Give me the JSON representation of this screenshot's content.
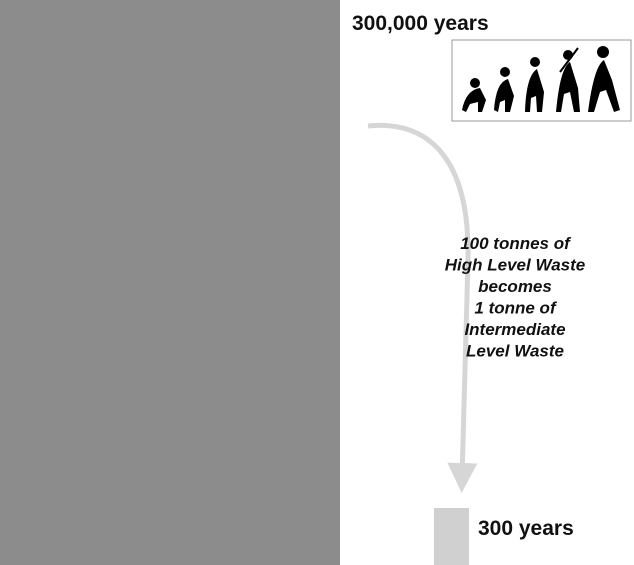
{
  "labels": {
    "long": "300,000 years",
    "short": "300 years"
  },
  "annotation": [
    "100 tonnes of",
    "High Level Waste",
    "becomes",
    "1 tonne of",
    "Intermediate",
    "Level Waste"
  ]
}
